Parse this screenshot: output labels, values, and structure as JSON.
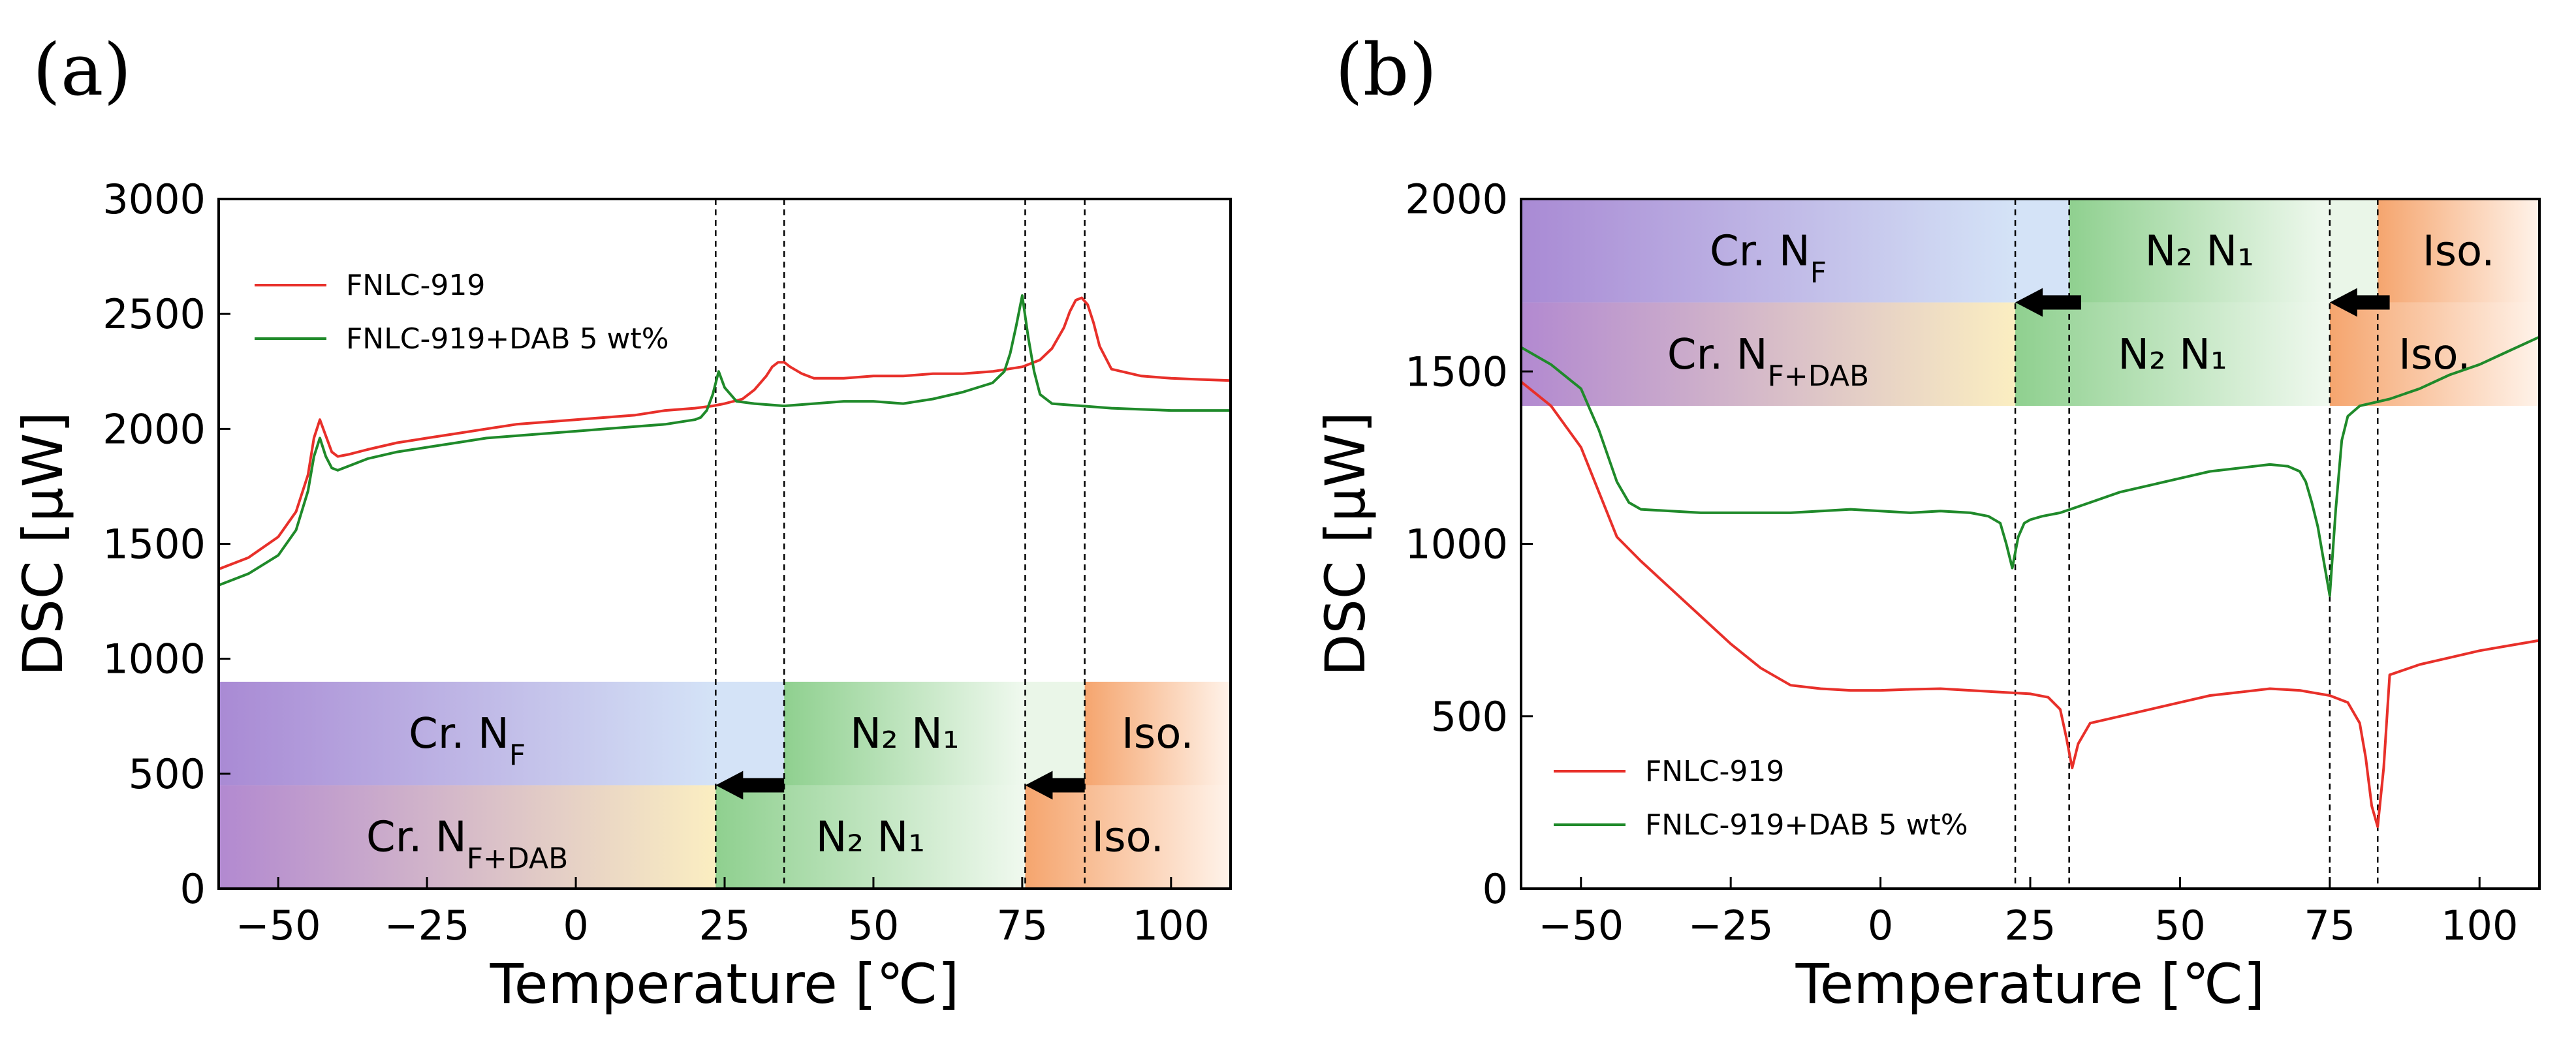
{
  "figure": {
    "panel_labels": [
      "(a)",
      "(b)"
    ]
  },
  "chart_data": [
    {
      "type": "line",
      "panel": "(a)",
      "title": "",
      "xlabel": "Temperature [℃]",
      "ylabel": "DSC [μW]",
      "xlim": [
        -60,
        110
      ],
      "ylim": [
        0,
        3000
      ],
      "xticks": [
        -50,
        -25,
        0,
        25,
        50,
        75,
        100
      ],
      "xtick_labels": [
        "−50",
        "−25",
        "0",
        "25",
        "50",
        "75",
        "100"
      ],
      "yticks": [
        0,
        500,
        1000,
        1500,
        2000,
        2500,
        3000
      ],
      "ytick_labels": [
        "0",
        "500",
        "1000",
        "1500",
        "2000",
        "2500",
        "3000"
      ],
      "grid": false,
      "legend_position": "upper-left",
      "series": [
        {
          "name": "FNLC-919",
          "color": "#e8302a",
          "x": [
            -60,
            -55,
            -50,
            -47,
            -45,
            -44,
            -43,
            -42,
            -41,
            -40,
            -38,
            -35,
            -30,
            -25,
            -20,
            -15,
            -10,
            -5,
            0,
            5,
            10,
            15,
            20,
            23,
            25,
            28,
            30,
            32,
            33,
            34,
            35,
            36,
            38,
            40,
            45,
            50,
            55,
            60,
            65,
            70,
            75,
            78,
            80,
            82,
            83,
            84,
            85,
            86,
            87,
            88,
            90,
            95,
            100,
            105,
            110
          ],
          "values": [
            1390,
            1440,
            1530,
            1640,
            1800,
            1960,
            2040,
            1970,
            1900,
            1880,
            1890,
            1910,
            1940,
            1960,
            1980,
            2000,
            2020,
            2030,
            2040,
            2050,
            2060,
            2080,
            2090,
            2100,
            2110,
            2130,
            2170,
            2230,
            2270,
            2290,
            2290,
            2270,
            2240,
            2220,
            2220,
            2230,
            2230,
            2240,
            2240,
            2250,
            2270,
            2300,
            2350,
            2440,
            2510,
            2560,
            2570,
            2540,
            2460,
            2360,
            2260,
            2230,
            2220,
            2215,
            2210
          ]
        },
        {
          "name": "FNLC-919+DAB 5 wt%",
          "color": "#1f8a2a",
          "x": [
            -60,
            -55,
            -50,
            -47,
            -45,
            -44,
            -43,
            -42,
            -41,
            -40,
            -38,
            -35,
            -30,
            -25,
            -20,
            -15,
            -10,
            -5,
            0,
            5,
            10,
            15,
            20,
            21,
            22,
            23,
            24,
            25,
            27,
            30,
            35,
            40,
            45,
            50,
            55,
            60,
            65,
            70,
            72,
            73,
            74,
            75,
            76,
            77,
            78,
            80,
            85,
            90,
            95,
            100,
            105,
            110
          ],
          "values": [
            1320,
            1370,
            1450,
            1560,
            1730,
            1880,
            1960,
            1880,
            1830,
            1820,
            1840,
            1870,
            1900,
            1920,
            1940,
            1960,
            1970,
            1980,
            1990,
            2000,
            2010,
            2020,
            2040,
            2050,
            2080,
            2150,
            2250,
            2180,
            2120,
            2110,
            2100,
            2110,
            2120,
            2120,
            2110,
            2130,
            2160,
            2200,
            2250,
            2330,
            2450,
            2580,
            2400,
            2250,
            2150,
            2110,
            2100,
            2090,
            2085,
            2080,
            2080,
            2080
          ]
        }
      ],
      "vlines": [
        23.5,
        35,
        75.5,
        85.5
      ],
      "phase_bands": [
        {
          "row": "upper",
          "y_range": [
            450,
            900
          ],
          "segments": [
            {
              "x_range": [
                -60,
                23.5
              ],
              "label": "Cr. N",
              "sub": "F",
              "from": "#a98ad4",
              "to": "#d4e3f7"
            },
            {
              "x_range": [
                23.5,
                35
              ],
              "label": "",
              "sub": "",
              "from": "#d4e3f7",
              "to": "#d4e3f7"
            },
            {
              "x_range": [
                35,
                75.5
              ],
              "label": "N₂  N₁",
              "sub": "",
              "from": "#8fd08f",
              "to": "#f0f9ef"
            },
            {
              "x_range": [
                75.5,
                85.5
              ],
              "label": "",
              "sub": "",
              "from": "#eaf6e8",
              "to": "#eaf6e8"
            },
            {
              "x_range": [
                85.5,
                110
              ],
              "label": "Iso.",
              "sub": "",
              "from": "#f5a56e",
              "to": "#fff3ea"
            }
          ]
        },
        {
          "row": "lower",
          "y_range": [
            0,
            450
          ],
          "segments": [
            {
              "x_range": [
                -60,
                23.5
              ],
              "label": "Cr. N",
              "sub": "F+DAB",
              "from": "#b289d0",
              "to": "#fbeec1"
            },
            {
              "x_range": [
                23.5,
                75.5
              ],
              "label": "N₂  N₁",
              "sub": "",
              "from": "#8fd08f",
              "to": "#f0f9ef"
            },
            {
              "x_range": [
                75.5,
                110
              ],
              "label": "Iso.",
              "sub": "",
              "from": "#f5a56e",
              "to": "#fff3ea"
            }
          ]
        }
      ],
      "arrows": [
        {
          "x_from": 35,
          "x_to": 23.5,
          "y": 450
        },
        {
          "x_from": 85.5,
          "x_to": 75.5,
          "y": 450
        }
      ]
    },
    {
      "type": "line",
      "panel": "(b)",
      "title": "",
      "xlabel": "Temperature [℃]",
      "ylabel": "DSC [μW]",
      "xlim": [
        -60,
        110
      ],
      "ylim": [
        0,
        2000
      ],
      "xticks": [
        -50,
        -25,
        0,
        25,
        50,
        75,
        100
      ],
      "xtick_labels": [
        "−50",
        "−25",
        "0",
        "25",
        "50",
        "75",
        "100"
      ],
      "yticks": [
        0,
        500,
        1000,
        1500,
        2000
      ],
      "ytick_labels": [
        "0",
        "500",
        "1000",
        "1500",
        "2000"
      ],
      "grid": false,
      "legend_position": "lower-left",
      "series": [
        {
          "name": "FNLC-919",
          "color": "#e8302a",
          "x": [
            -60,
            -55,
            -50,
            -47,
            -44,
            -40,
            -35,
            -30,
            -25,
            -20,
            -15,
            -10,
            -5,
            0,
            5,
            10,
            15,
            20,
            25,
            28,
            30,
            31,
            32,
            33,
            35,
            40,
            45,
            50,
            55,
            60,
            65,
            70,
            75,
            78,
            80,
            81,
            82,
            83,
            84,
            85,
            90,
            95,
            100,
            105,
            110
          ],
          "values": [
            1470,
            1400,
            1280,
            1150,
            1020,
            950,
            870,
            790,
            710,
            640,
            590,
            580,
            575,
            575,
            578,
            580,
            575,
            570,
            565,
            555,
            520,
            440,
            350,
            420,
            480,
            500,
            520,
            540,
            560,
            570,
            580,
            575,
            560,
            540,
            480,
            380,
            240,
            180,
            350,
            620,
            650,
            670,
            690,
            705,
            720
          ]
        },
        {
          "name": "FNLC-919+DAB 5 wt%",
          "color": "#1f8a2a",
          "x": [
            -60,
            -57,
            -55,
            -50,
            -47,
            -44,
            -42,
            -40,
            -35,
            -30,
            -25,
            -20,
            -15,
            -10,
            -5,
            0,
            5,
            10,
            15,
            18,
            20,
            21,
            22,
            23,
            24,
            25,
            27,
            30,
            35,
            40,
            45,
            50,
            55,
            60,
            65,
            68,
            70,
            71,
            72,
            73,
            74,
            75,
            76,
            77,
            78,
            80,
            85,
            90,
            95,
            100,
            105,
            110
          ],
          "values": [
            1570,
            1540,
            1520,
            1450,
            1330,
            1180,
            1120,
            1100,
            1095,
            1090,
            1090,
            1090,
            1090,
            1095,
            1100,
            1095,
            1090,
            1095,
            1090,
            1080,
            1060,
            1000,
            930,
            1020,
            1060,
            1070,
            1080,
            1090,
            1120,
            1150,
            1170,
            1190,
            1210,
            1220,
            1230,
            1225,
            1210,
            1180,
            1120,
            1050,
            950,
            850,
            1100,
            1300,
            1370,
            1400,
            1420,
            1450,
            1490,
            1520,
            1560,
            1600
          ]
        }
      ],
      "vlines": [
        22.5,
        31.5,
        75,
        83
      ],
      "phase_bands": [
        {
          "row": "upper",
          "y_range": [
            1700,
            2000
          ],
          "segments": [
            {
              "x_range": [
                -60,
                22.5
              ],
              "label": "Cr. N",
              "sub": "F",
              "from": "#a98ad4",
              "to": "#d4e3f7"
            },
            {
              "x_range": [
                22.5,
                31.5
              ],
              "label": "",
              "sub": "",
              "from": "#d4e3f7",
              "to": "#d4e3f7"
            },
            {
              "x_range": [
                31.5,
                75
              ],
              "label": "N₂  N₁",
              "sub": "",
              "from": "#8fd08f",
              "to": "#f0f9ef"
            },
            {
              "x_range": [
                75,
                83
              ],
              "label": "",
              "sub": "",
              "from": "#eaf6e8",
              "to": "#eaf6e8"
            },
            {
              "x_range": [
                83,
                110
              ],
              "label": "Iso.",
              "sub": "",
              "from": "#f5a56e",
              "to": "#fff3ea"
            }
          ]
        },
        {
          "row": "lower",
          "y_range": [
            1400,
            1700
          ],
          "segments": [
            {
              "x_range": [
                -60,
                22.5
              ],
              "label": "Cr. N",
              "sub": "F+DAB",
              "from": "#b289d0",
              "to": "#fbeec1"
            },
            {
              "x_range": [
                22.5,
                75
              ],
              "label": "N₂  N₁",
              "sub": "",
              "from": "#8fd08f",
              "to": "#f0f9ef"
            },
            {
              "x_range": [
                75,
                110
              ],
              "label": "Iso.",
              "sub": "",
              "from": "#f5a56e",
              "to": "#fff3ea"
            }
          ]
        }
      ],
      "arrows": [
        {
          "x_from": 33.5,
          "x_to": 22.5,
          "y": 1700
        },
        {
          "x_from": 85,
          "x_to": 75,
          "y": 1700
        }
      ]
    }
  ]
}
